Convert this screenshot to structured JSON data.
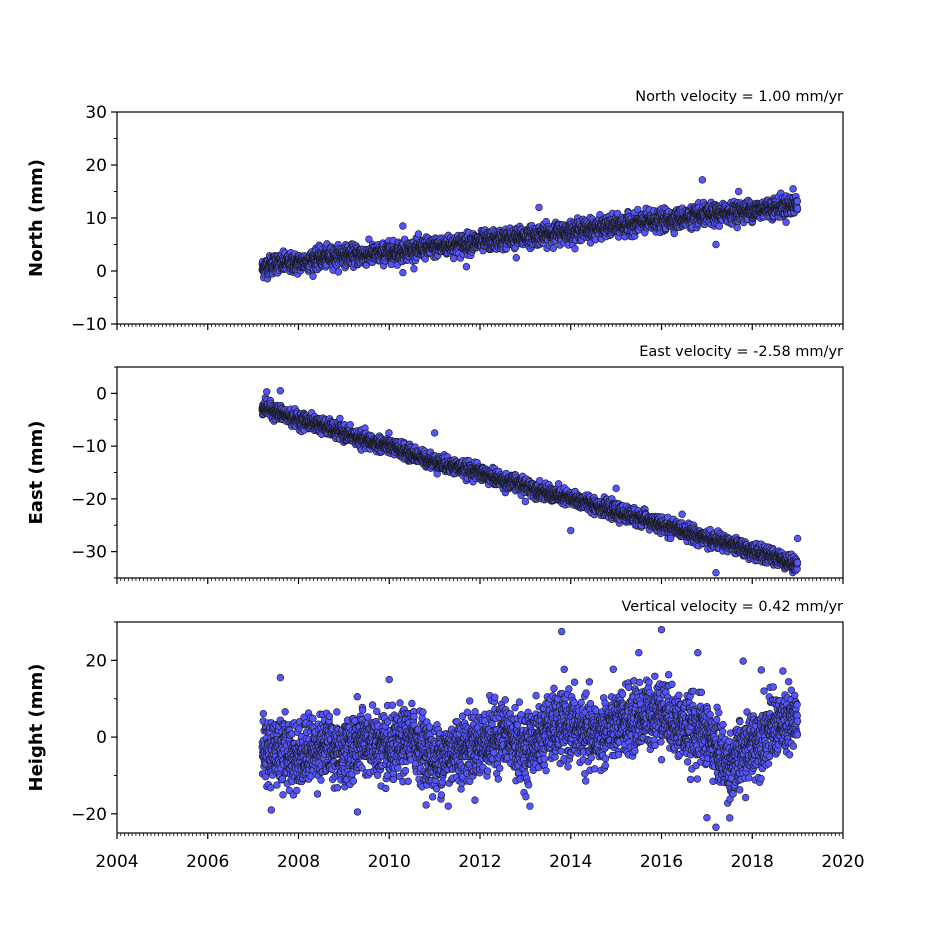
{
  "chart_data": {
    "type": "scatter",
    "x_axis": {
      "range": [
        2004,
        2020
      ],
      "ticks": [
        2004,
        2006,
        2008,
        2010,
        2012,
        2014,
        2016,
        2018,
        2020
      ],
      "tick_labels": [
        "2004",
        "2006",
        "2008",
        "2010",
        "2012",
        "2014",
        "2016",
        "2018",
        "2020"
      ]
    },
    "marker_color": "#5555ff",
    "marker_edge_color": "#1a1a1a",
    "panels": [
      {
        "id": "north",
        "title": "North velocity = 1.00 mm/yr",
        "ylabel": "North (mm)",
        "ylim": [
          -10,
          30
        ],
        "yticks": [
          -10,
          0,
          10,
          20,
          30
        ],
        "ytick_labels": [
          "−10",
          "0",
          "10",
          "20",
          "30"
        ],
        "velocity": 1.0,
        "series": {
          "x": [
            2007.2,
            2007.5,
            2008.0,
            2008.5,
            2009.0,
            2009.5,
            2010.0,
            2010.5,
            2011.0,
            2011.5,
            2012.0,
            2012.5,
            2013.0,
            2013.5,
            2014.0,
            2014.5,
            2015.0,
            2015.5,
            2016.0,
            2016.5,
            2017.0,
            2017.5,
            2018.0,
            2018.5,
            2019.0
          ],
          "y": [
            0.5,
            1.5,
            1.5,
            2.5,
            3,
            3,
            3.5,
            4,
            4.5,
            5,
            5.5,
            6,
            6.5,
            7,
            7.5,
            8,
            8.5,
            9,
            9.5,
            10,
            10.5,
            11,
            11.5,
            12,
            12.5
          ],
          "outliers": [
            [
              2010.3,
              8.5
            ],
            [
              2013.3,
              12
            ],
            [
              2016.9,
              17.2
            ],
            [
              2017.7,
              15
            ],
            [
              2018.9,
              15.5
            ],
            [
              2010.3,
              -0.3
            ],
            [
              2012.8,
              2.5
            ],
            [
              2017.2,
              5
            ],
            [
              2011.7,
              0.8
            ]
          ]
        }
      },
      {
        "id": "east",
        "title": "East velocity = -2.58 mm/yr",
        "ylabel": "East (mm)",
        "ylim": [
          -35,
          5
        ],
        "yticks": [
          -30,
          -20,
          -10,
          0
        ],
        "ytick_labels": [
          "−30",
          "−20",
          "−10",
          "0"
        ],
        "velocity": -2.58,
        "series": {
          "x": [
            2007.2,
            2007.5,
            2008.0,
            2008.5,
            2009.0,
            2009.5,
            2010.0,
            2010.5,
            2011.0,
            2011.5,
            2012.0,
            2012.5,
            2013.0,
            2013.5,
            2014.0,
            2014.5,
            2015.0,
            2015.5,
            2016.0,
            2016.5,
            2017.0,
            2017.5,
            2018.0,
            2018.5,
            2019.0
          ],
          "y": [
            -2.5,
            -3.5,
            -5,
            -6,
            -7.5,
            -9,
            -10,
            -11.5,
            -13,
            -14,
            -15,
            -16.5,
            -17.5,
            -19,
            -20,
            -21,
            -22.5,
            -23.5,
            -25,
            -26,
            -27.5,
            -28.5,
            -30,
            -31,
            -32.5
          ],
          "outliers": [
            [
              2007.3,
              0.3
            ],
            [
              2007.6,
              0.5
            ],
            [
              2011.0,
              -7.5
            ],
            [
              2015.0,
              -18
            ],
            [
              2014.0,
              -26
            ],
            [
              2017.2,
              -34
            ],
            [
              2019.0,
              -27.5
            ],
            [
              2013.0,
              -20.5
            ],
            [
              2016.2,
              -27.5
            ]
          ]
        }
      },
      {
        "id": "height",
        "title": "Vertical velocity = 0.42 mm/yr",
        "ylabel": "Height (mm)",
        "ylim": [
          -25,
          30
        ],
        "yticks": [
          -20,
          0,
          20
        ],
        "ytick_labels": [
          "−20",
          "0",
          "20"
        ],
        "velocity": 0.42,
        "series": {
          "x": [
            2007.2,
            2007.5,
            2008.0,
            2008.5,
            2009.0,
            2009.5,
            2010.0,
            2010.5,
            2011.0,
            2011.5,
            2012.0,
            2012.5,
            2013.0,
            2013.5,
            2014.0,
            2014.5,
            2015.0,
            2015.5,
            2016.0,
            2016.5,
            2017.0,
            2017.5,
            2018.0,
            2018.5,
            2019.0
          ],
          "y": [
            -4,
            -3,
            -5,
            -2,
            -4,
            -1,
            -4,
            0,
            -6,
            -3,
            -2,
            1,
            -3,
            2,
            3,
            0,
            3,
            5,
            7,
            2,
            1,
            -8,
            -2,
            3,
            4
          ],
          "outliers": [
            [
              2013.8,
              27.5
            ],
            [
              2016.0,
              28
            ],
            [
              2015.5,
              22
            ],
            [
              2016.8,
              22
            ],
            [
              2017.2,
              -23.5
            ],
            [
              2017.0,
              -21
            ],
            [
              2009.3,
              -19.5
            ],
            [
              2007.4,
              -19
            ],
            [
              2011.3,
              -18
            ],
            [
              2013.1,
              -18
            ],
            [
              2017.8,
              19.8
            ],
            [
              2018.2,
              17.5
            ],
            [
              2007.6,
              15.5
            ],
            [
              2010.0,
              15
            ]
          ]
        }
      }
    ]
  }
}
